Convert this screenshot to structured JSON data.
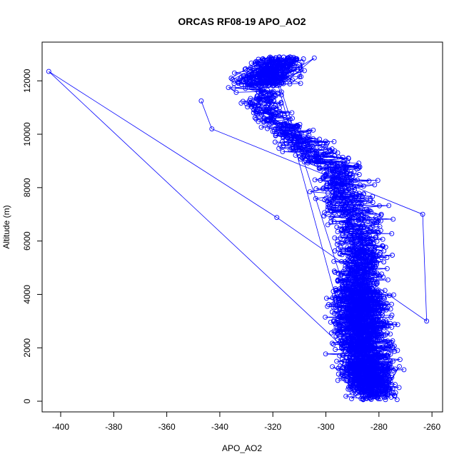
{
  "chart_data": {
    "type": "scatter",
    "title": "ORCAS RF08-19 APO_AO2",
    "xlabel": "APO_AO2",
    "ylabel": "Altitude (m)",
    "xlim": [
      -407,
      -256
    ],
    "ylim": [
      -400,
      13450
    ],
    "xticks": [
      -400,
      -380,
      -360,
      -340,
      -320,
      -300,
      -280,
      -260
    ],
    "yticks": [
      0,
      2000,
      4000,
      6000,
      8000,
      10000,
      12000
    ],
    "grid": false,
    "style": "points connected by lines (type b)",
    "color": "#0000ff",
    "profile_summary": [
      {
        "altitude": 0,
        "apo_min": -302,
        "apo_max": -262,
        "apo_center": -280
      },
      {
        "altitude": 1000,
        "apo_min": -306,
        "apo_max": -263,
        "apo_center": -283
      },
      {
        "altitude": 2000,
        "apo_min": -310,
        "apo_max": -262,
        "apo_center": -286
      },
      {
        "altitude": 3000,
        "apo_min": -312,
        "apo_max": -262,
        "apo_center": -287
      },
      {
        "altitude": 4000,
        "apo_min": -308,
        "apo_max": -266,
        "apo_center": -288
      },
      {
        "altitude": 5000,
        "apo_min": -306,
        "apo_max": -266,
        "apo_center": -289
      },
      {
        "altitude": 6000,
        "apo_min": -306,
        "apo_max": -264,
        "apo_center": -290
      },
      {
        "altitude": 7000,
        "apo_min": -312,
        "apo_max": -263,
        "apo_center": -292
      },
      {
        "altitude": 8000,
        "apo_min": -316,
        "apo_max": -272,
        "apo_center": -296
      },
      {
        "altitude": 8700,
        "apo_min": -320,
        "apo_max": -275,
        "apo_center": -290
      },
      {
        "altitude": 9500,
        "apo_min": -330,
        "apo_max": -280,
        "apo_center": -310
      },
      {
        "altitude": 11000,
        "apo_min": -342,
        "apo_max": -305,
        "apo_center": -325
      },
      {
        "altitude": 12000,
        "apo_min": -347,
        "apo_max": -297,
        "apo_center": -328
      },
      {
        "altitude": 12800,
        "apo_min": -335,
        "apo_max": -296,
        "apo_center": -318
      }
    ],
    "notable_points": [
      {
        "x": -404.5,
        "y": 12350
      },
      {
        "x": -318.5,
        "y": 6880
      },
      {
        "x": -262,
        "y": 3000
      },
      {
        "x": -263.5,
        "y": 7000
      },
      {
        "x": -343,
        "y": 10200
      },
      {
        "x": -347,
        "y": 11250
      }
    ]
  }
}
